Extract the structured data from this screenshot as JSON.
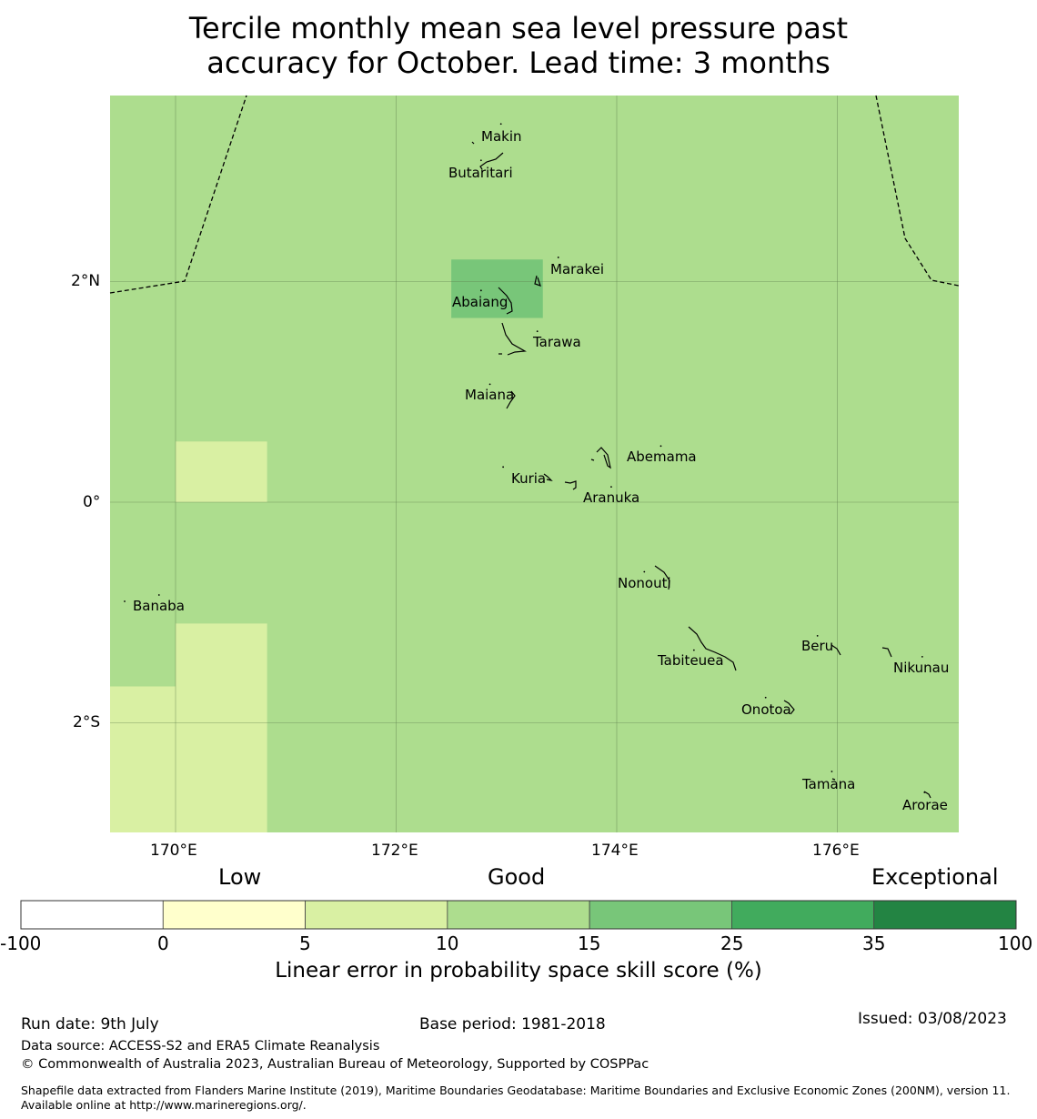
{
  "title": {
    "line1": "Tercile monthly mean sea level pressure past",
    "line2": "accuracy for October. Lead time: 3 months"
  },
  "map": {
    "background_color": "#addd8e",
    "cells": [
      {
        "lon": [
          172.5,
          173.33
        ],
        "lat": [
          1.67,
          2.2
        ],
        "color": "#78c679",
        "value_range": "15 to 25"
      },
      {
        "lon": [
          170.0,
          170.83
        ],
        "lat": [
          0.0,
          0.55
        ],
        "color": "#d9f0a3",
        "value_range": "5 to 10"
      },
      {
        "lon": [
          170.0,
          170.83
        ],
        "lat": [
          -3.0,
          -1.1
        ],
        "color": "#d9f0a3",
        "value_range": "5 to 10"
      },
      {
        "lon": [
          169.4,
          170.0
        ],
        "lat": [
          -3.0,
          -1.67
        ],
        "color": "#d9f0a3",
        "value_range": "5 to 10"
      }
    ],
    "x_ticks": [
      {
        "lon": 170,
        "label": "170°E"
      },
      {
        "lon": 172,
        "label": "172°E"
      },
      {
        "lon": 174,
        "label": "174°E"
      },
      {
        "lon": 176,
        "label": "176°E"
      }
    ],
    "y_ticks": [
      {
        "lat": 2,
        "label": "2°N"
      },
      {
        "lat": 0,
        "label": "0°"
      },
      {
        "lat": -2,
        "label": "2°S"
      }
    ],
    "places": [
      {
        "name": "Makin",
        "lon": 172.95,
        "lat": 3.33
      },
      {
        "name": "Butaritari",
        "lon": 172.77,
        "lat": 3.0
      },
      {
        "name": "Marakei",
        "lon": 173.47,
        "lat": 2.12
      },
      {
        "name": "Abaiang",
        "lon": 172.77,
        "lat": 1.82
      },
      {
        "name": "Tarawa",
        "lon": 173.28,
        "lat": 1.45
      },
      {
        "name": "Maiana",
        "lon": 172.85,
        "lat": 0.97
      },
      {
        "name": "Abemama",
        "lon": 174.4,
        "lat": 0.41
      },
      {
        "name": "Kuria",
        "lon": 172.97,
        "lat": 0.22
      },
      {
        "name": "Aranuka",
        "lon": 173.95,
        "lat": 0.04
      },
      {
        "name": "Nonouti",
        "lon": 174.25,
        "lat": -0.73
      },
      {
        "name": "Banaba",
        "lon": 169.85,
        "lat": -0.94
      },
      {
        "name": "Beru",
        "lon": 175.82,
        "lat": -1.31
      },
      {
        "name": "Tabiteuea",
        "lon": 174.7,
        "lat": -1.44
      },
      {
        "name": "Nikunau",
        "lon": 176.77,
        "lat": -1.5
      },
      {
        "name": "Onotoa",
        "lon": 175.35,
        "lat": -1.87
      },
      {
        "name": "Tamana",
        "lon": 175.95,
        "lat": -2.54
      },
      {
        "name": "Arorae",
        "lon": 176.79,
        "lat": -2.73
      }
    ]
  },
  "colorbar": {
    "category_labels": {
      "low": "Low",
      "good": "Good",
      "exceptional": "Exceptional"
    },
    "segments": [
      {
        "from": "-100",
        "to": "0",
        "color": "#ffffff"
      },
      {
        "from": "0",
        "to": "5",
        "color": "#ffffcc"
      },
      {
        "from": "5",
        "to": "10",
        "color": "#d9f0a3"
      },
      {
        "from": "10",
        "to": "15",
        "color": "#addd8e"
      },
      {
        "from": "15",
        "to": "25",
        "color": "#78c679"
      },
      {
        "from": "25",
        "to": "35",
        "color": "#41ab5d"
      },
      {
        "from": "35",
        "to": "100",
        "color": "#238443"
      }
    ],
    "ticks": [
      "-100",
      "0",
      "5",
      "10",
      "15",
      "25",
      "35",
      "100"
    ],
    "label": "Linear error in probability space skill score (%)"
  },
  "footer": {
    "run_date": "Run date: 9th July",
    "base_period": "Base period: 1981-2018",
    "issued": "Issued: 03/08/2023",
    "data_source": "Data source: ACCESS-S2 and ERA5 Climate Reanalysis",
    "copyright": "© Commonwealth of Australia 2023, Australian Bureau of Meteorology, Supported by COSPPac",
    "shapefile_note": "Shapefile data extracted from Flanders Marine Institute (2019), Maritime Boundaries Geodatabase: Maritime Boundaries and Exclusive Economic Zones (200NM), version 11. Available online at http://www.marineregions.org/."
  }
}
